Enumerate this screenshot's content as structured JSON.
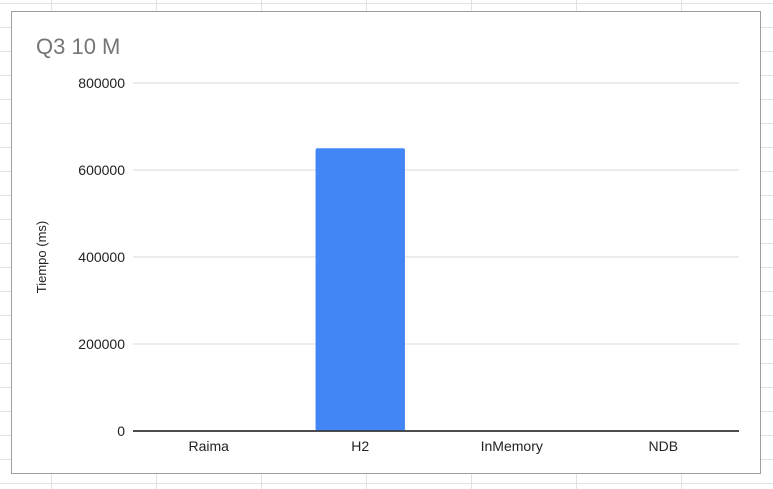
{
  "chart_data": {
    "type": "bar",
    "title": "Q3 10 M",
    "xlabel": "",
    "ylabel": "Tiempo (ms)",
    "categories": [
      "Raima",
      "H2",
      "InMemory",
      "NDB"
    ],
    "values": [
      0,
      650000,
      0,
      0
    ],
    "ylim": [
      0,
      800000
    ],
    "yticks": [
      0,
      200000,
      400000,
      600000,
      800000
    ],
    "grid": true,
    "bar_color": "#4285f4",
    "gridline_color": "#d9d9d9",
    "axis_color": "#333333",
    "text_color": "#222222"
  }
}
